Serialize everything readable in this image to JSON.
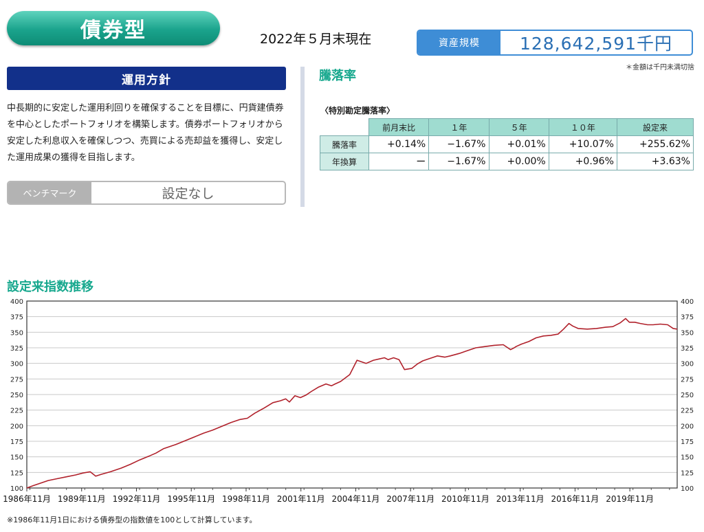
{
  "header": {
    "fund_type": "債券型",
    "as_of": "2022年５月末現在",
    "asset_label": "資産規模",
    "asset_value": "128,642,591千円",
    "asset_note": "＊金額は千円未満切捨"
  },
  "policy": {
    "heading": "運用方針",
    "text": "中長期的に安定した運用利回りを確保することを目標に、円貨建債券を中心としたポートフォリオを構築します。債券ポートフォリオから安定した利息収入を確保しつつ、売買による売却益を獲得し、安定した運用成果の獲得を目指します。",
    "benchmark_label": "ベンチマーク",
    "benchmark_value": "設定なし"
  },
  "returns": {
    "title": "騰落率",
    "table_title": "〈特別勘定騰落率〉",
    "columns": [
      "前月末比",
      "１年",
      "５年",
      "１０年",
      "設定来"
    ],
    "rows": [
      {
        "label": "騰落率",
        "values": [
          "+0.14%",
          "−1.67%",
          "+0.01%",
          "+10.07%",
          "+255.62%"
        ]
      },
      {
        "label": "年換算",
        "values": [
          "ー",
          "−1.67%",
          "+0.00%",
          "+0.96%",
          "+3.63%"
        ]
      }
    ]
  },
  "chart_title": "設定来指数推移",
  "footnote": "※1986年11月1日における債券型の指数値を100として計算しています。",
  "colors": {
    "accent": "#17a88e",
    "navy": "#12308a",
    "blue": "#3e8dd6",
    "line": "#b0202a"
  },
  "chart_data": {
    "type": "line",
    "title": "設定来指数推移",
    "xlabel": "",
    "ylabel": "",
    "ylim": [
      100,
      400
    ],
    "yticks": [
      100,
      125,
      150,
      175,
      200,
      225,
      250,
      275,
      300,
      325,
      350,
      375,
      400
    ],
    "xlim": [
      1986.83,
      2022.42
    ],
    "xtick_labels": [
      "1986年11月",
      "1989年11月",
      "1992年11月",
      "1995年11月",
      "1998年11月",
      "2001年11月",
      "2004年11月",
      "2007年11月",
      "2010年11月",
      "2013年11月",
      "2016年11月",
      "2019年11月"
    ],
    "grid": true,
    "series": [
      {
        "values_x": [
          1986.83,
          1987.2,
          1987.6,
          1988.0,
          1988.5,
          1989.0,
          1989.5,
          1989.9,
          1990.3,
          1990.6,
          1990.9,
          1991.4,
          1992.0,
          1992.5,
          1993.0,
          1993.5,
          1993.9,
          1994.3,
          1994.7,
          1995.0,
          1995.5,
          1996.0,
          1996.5,
          1997.0,
          1997.5,
          1998.0,
          1998.5,
          1998.9,
          1999.3,
          1999.8,
          2000.3,
          2000.7,
          2001.0,
          2001.2,
          2001.5,
          2001.8,
          2002.1,
          2002.4,
          2002.8,
          2003.2,
          2003.5,
          2003.7,
          2004.0,
          2004.5,
          2004.9,
          2005.4,
          2005.8,
          2006.1,
          2006.4,
          2006.6,
          2006.9,
          2007.2,
          2007.5,
          2007.9,
          2008.2,
          2008.5,
          2008.8,
          2009.1,
          2009.3,
          2009.7,
          2010.0,
          2010.5,
          2010.9,
          2011.4,
          2011.9,
          2012.4,
          2012.9,
          2013.3,
          2013.5,
          2013.6,
          2013.9,
          2014.3,
          2014.7,
          2015.1,
          2015.5,
          2015.9,
          2016.2,
          2016.5,
          2016.7,
          2017.0,
          2017.5,
          2018.0,
          2018.5,
          2018.9,
          2019.3,
          2019.6,
          2019.8,
          2020.1,
          2020.4,
          2020.8,
          2021.1,
          2021.5,
          2021.9,
          2022.2,
          2022.42
        ],
        "values_y": [
          100,
          104,
          108,
          112,
          115,
          118,
          121,
          124,
          126,
          119,
          122,
          126,
          132,
          138,
          145,
          151,
          156,
          163,
          167,
          170,
          176,
          182,
          188,
          193,
          199,
          205,
          210,
          212,
          220,
          228,
          237,
          240,
          243,
          238,
          248,
          245,
          249,
          255,
          262,
          267,
          264,
          267,
          271,
          282,
          305,
          300,
          305,
          307,
          309,
          306,
          309,
          306,
          290,
          292,
          299,
          304,
          307,
          310,
          312,
          310,
          312,
          316,
          320,
          325,
          327,
          329,
          330,
          322,
          325,
          327,
          331,
          335,
          341,
          344,
          345,
          347,
          355,
          364,
          360,
          356,
          355,
          356,
          358,
          359,
          365,
          372,
          366,
          366,
          364,
          362,
          362,
          363,
          362,
          356,
          355
        ]
      }
    ]
  }
}
